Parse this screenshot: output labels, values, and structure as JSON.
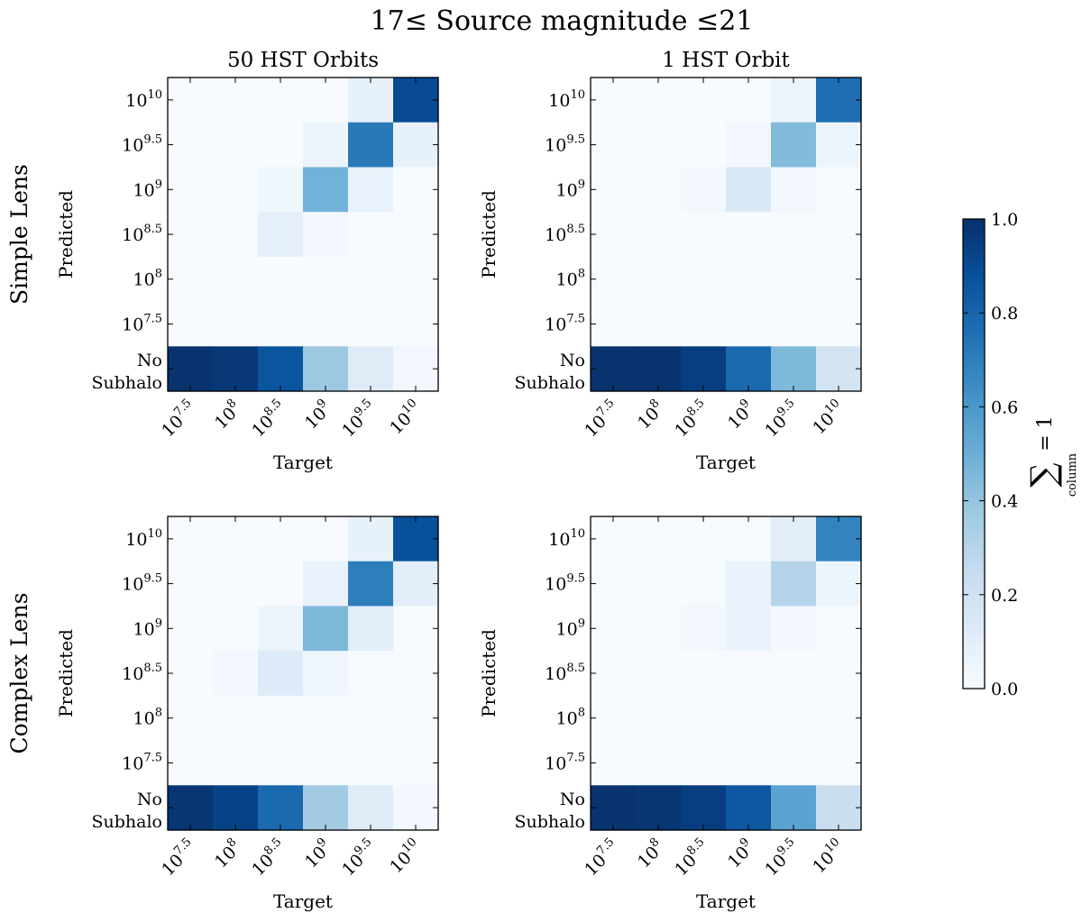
{
  "chart_data": {
    "type": "heatmap",
    "title": "17≤ Source magnitude ≤21",
    "column_titles": [
      "50 HST Orbits",
      "1 HST Orbit"
    ],
    "row_labels": [
      "Simple Lens",
      "Complex Lens"
    ],
    "xlabel": "Target",
    "ylabel": "Predicted",
    "x_categories": [
      {
        "base": "10",
        "exp": "7.5"
      },
      {
        "base": "10",
        "exp": "8"
      },
      {
        "base": "10",
        "exp": "8.5"
      },
      {
        "base": "10",
        "exp": "9"
      },
      {
        "base": "10",
        "exp": "9.5"
      },
      {
        "base": "10",
        "exp": "10"
      }
    ],
    "y_categories_top_to_bottom": [
      {
        "base": "10",
        "exp": "10"
      },
      {
        "base": "10",
        "exp": "9.5"
      },
      {
        "base": "10",
        "exp": "9"
      },
      {
        "base": "10",
        "exp": "8.5"
      },
      {
        "base": "10",
        "exp": "8"
      },
      {
        "base": "10",
        "exp": "7.5"
      },
      {
        "line1": "No",
        "line2": "Subhalo"
      }
    ],
    "colorbar": {
      "label_main": "∑",
      "label_sub": "column",
      "label_rhs": "= 1",
      "range": [
        0,
        1
      ],
      "ticks": [
        "0.0",
        "0.2",
        "0.4",
        "0.6",
        "0.8",
        "1.0"
      ],
      "colors": [
        "#f7fbff",
        "#deebf7",
        "#c6dbef",
        "#9ecae1",
        "#6baed6",
        "#4292c6",
        "#2171b5",
        "#08519c",
        "#08306b"
      ]
    },
    "panels": [
      {
        "row": "Simple Lens",
        "col": "50 HST Orbits",
        "values": [
          [
            0.0,
            0.0,
            0.0,
            0.0,
            0.08,
            0.9
          ],
          [
            0.0,
            0.0,
            0.0,
            0.05,
            0.72,
            0.08
          ],
          [
            0.0,
            0.0,
            0.04,
            0.48,
            0.07,
            0.0
          ],
          [
            0.0,
            0.01,
            0.09,
            0.02,
            0.0,
            0.0
          ],
          [
            0.0,
            0.0,
            0.0,
            0.0,
            0.0,
            0.0
          ],
          [
            0.0,
            0.0,
            0.0,
            0.0,
            0.0,
            0.0
          ],
          [
            0.99,
            0.97,
            0.86,
            0.38,
            0.12,
            0.03
          ]
        ]
      },
      {
        "row": "Simple Lens",
        "col": "1 HST Orbit",
        "values": [
          [
            0.0,
            0.0,
            0.0,
            0.0,
            0.06,
            0.76
          ],
          [
            0.0,
            0.0,
            0.0,
            0.03,
            0.44,
            0.05
          ],
          [
            0.0,
            0.0,
            0.02,
            0.15,
            0.03,
            0.0
          ],
          [
            0.0,
            0.0,
            0.01,
            0.0,
            0.0,
            0.0
          ],
          [
            0.0,
            0.0,
            0.0,
            0.0,
            0.0,
            0.0
          ],
          [
            0.0,
            0.0,
            0.0,
            0.0,
            0.0,
            0.0
          ],
          [
            0.99,
            0.99,
            0.95,
            0.78,
            0.45,
            0.18
          ]
        ]
      },
      {
        "row": "Complex Lens",
        "col": "50 HST Orbits",
        "values": [
          [
            0.0,
            0.0,
            0.0,
            0.0,
            0.08,
            0.88
          ],
          [
            0.0,
            0.0,
            0.0,
            0.07,
            0.7,
            0.1
          ],
          [
            0.0,
            0.0,
            0.06,
            0.45,
            0.1,
            0.0
          ],
          [
            0.0,
            0.02,
            0.13,
            0.04,
            0.0,
            0.0
          ],
          [
            0.0,
            0.0,
            0.0,
            0.0,
            0.0,
            0.0
          ],
          [
            0.0,
            0.0,
            0.0,
            0.0,
            0.0,
            0.0
          ],
          [
            0.98,
            0.93,
            0.78,
            0.36,
            0.12,
            0.02
          ]
        ]
      },
      {
        "row": "Complex Lens",
        "col": "1 HST Orbit",
        "values": [
          [
            0.0,
            0.0,
            0.0,
            0.01,
            0.1,
            0.68
          ],
          [
            0.0,
            0.0,
            0.01,
            0.07,
            0.3,
            0.05
          ],
          [
            0.0,
            0.01,
            0.03,
            0.07,
            0.02,
            0.0
          ],
          [
            0.0,
            0.0,
            0.0,
            0.0,
            0.0,
            0.0
          ],
          [
            0.0,
            0.0,
            0.0,
            0.0,
            0.0,
            0.0
          ],
          [
            0.0,
            0.0,
            0.0,
            0.0,
            0.0,
            0.0
          ],
          [
            0.99,
            0.98,
            0.95,
            0.85,
            0.55,
            0.23
          ]
        ]
      }
    ]
  }
}
